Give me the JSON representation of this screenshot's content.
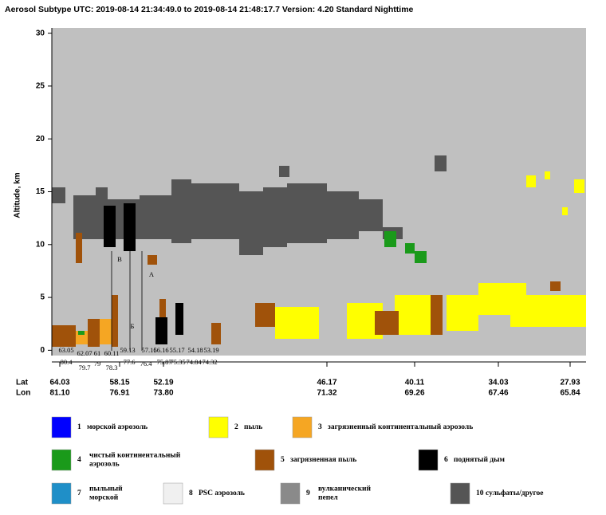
{
  "header": {
    "title": "Aerosol Subtype   UTC:  2019-08-14   21:34:49.0  to  2019-08-14   21:48:17.7    Version: 4.20  Standard Nighttime"
  },
  "chart_data": {
    "type": "curtain",
    "y_label": "Altitude, km",
    "ylim": [
      -0.5,
      30.5
    ],
    "yticks": [
      0,
      5,
      10,
      15,
      20,
      25,
      30
    ],
    "x_row_labels": [
      "Lat",
      "Lon"
    ],
    "lat": [
      "64.03",
      "58.15",
      "52.19",
      "46.17",
      "40.11",
      "34.03",
      "27.93"
    ],
    "lon": [
      "81.10",
      "76.91",
      "73.80",
      "71.32",
      "69.26",
      "67.46",
      "65.84"
    ],
    "annotations": [
      "63.05",
      "80.4",
      "62.07",
      "79.7",
      "61",
      "79",
      "60.11",
      "78.3",
      "59.13",
      "77.6",
      "57.16",
      "76.4",
      "56.16",
      "75.87",
      "55.17",
      "75.35",
      "54.18",
      "74.84",
      "53.19",
      "74.32",
      "В",
      "А",
      "Б"
    ],
    "legend": [
      {
        "number": "1",
        "label": [
          "морской аэрозоль"
        ],
        "color": "#0000ff"
      },
      {
        "number": "2",
        "label": [
          "пыль"
        ],
        "color": "#ffff00"
      },
      {
        "number": "3",
        "label": [
          "загрязненный континентальный аэрозоль"
        ],
        "color": "#f5a623"
      },
      {
        "number": "4",
        "label": [
          "чистый континентальный",
          "аэрозоль"
        ],
        "color": "#1a9a1a"
      },
      {
        "number": "5",
        "label": [
          "загрязненная пыль"
        ],
        "color": "#a0520a"
      },
      {
        "number": "6",
        "label": [
          "поднятый дым"
        ],
        "color": "#000000"
      },
      {
        "number": "7",
        "label": [
          "пыльный",
          "морской"
        ],
        "color": "#1f8fc8"
      },
      {
        "number": "8",
        "label": [
          "PSC аэрозоль"
        ],
        "color": "#f0f0f0"
      },
      {
        "number": "9",
        "label": [
          "вулканический",
          "пепел"
        ],
        "color": "#8a8a8a"
      },
      {
        "number": "10",
        "label": [
          "сульфаты/другое"
        ],
        "color": "#555555"
      }
    ]
  }
}
